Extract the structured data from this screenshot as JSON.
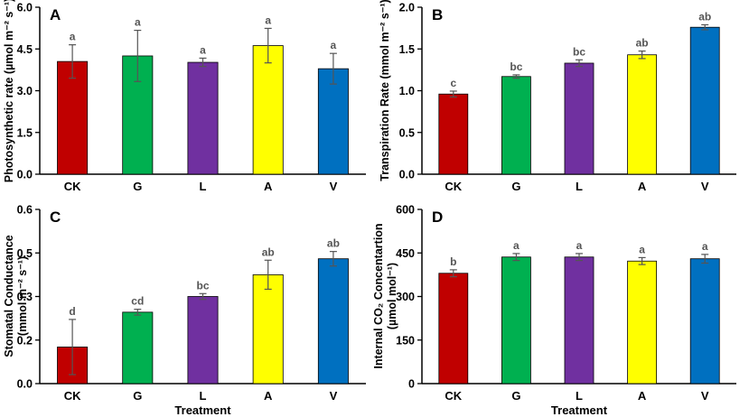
{
  "figure": {
    "colors": {
      "CK": "#c00000",
      "G": "#00b050",
      "L": "#7030a0",
      "A": "#ffff00",
      "V": "#0070c0",
      "axis": "#000000",
      "errorbar": "#555555"
    }
  },
  "chart_data": [
    {
      "panel": "A",
      "type": "bar",
      "categories": [
        "CK",
        "G",
        "L",
        "A",
        "V"
      ],
      "values": [
        4.05,
        4.25,
        4.02,
        4.62,
        3.79
      ],
      "errors": [
        0.6,
        0.92,
        0.15,
        0.62,
        0.55
      ],
      "significance": [
        "a",
        "a",
        "a",
        "a",
        "a"
      ],
      "ylabel": "Photosynthetic  rate (µmol m⁻² s⁻¹)",
      "xlabel": "",
      "ylim": [
        0,
        6.0
      ],
      "yticks": [
        "0.0",
        "1.5",
        "3.0",
        "4.5",
        "6.0"
      ]
    },
    {
      "panel": "B",
      "type": "bar",
      "categories": [
        "CK",
        "G",
        "L",
        "A",
        "V"
      ],
      "values": [
        0.96,
        1.17,
        1.33,
        1.43,
        1.76
      ],
      "errors": [
        0.035,
        0.02,
        0.04,
        0.045,
        0.03
      ],
      "significance": [
        "c",
        "bc",
        "bc",
        "ab",
        "ab"
      ],
      "ylabel": "Transpiration Rate (mmol m⁻² s⁻¹)",
      "xlabel": "",
      "ylim": [
        0,
        2.0
      ],
      "yticks": [
        "0.0",
        "0.5",
        "1.0",
        "1.5",
        "2.0"
      ]
    },
    {
      "panel": "C",
      "type": "bar",
      "categories": [
        "CK",
        "G",
        "L",
        "A",
        "V"
      ],
      "values": [
        0.126,
        0.246,
        0.3,
        0.375,
        0.43
      ],
      "errors": [
        0.095,
        0.01,
        0.01,
        0.05,
        0.025
      ],
      "significance": [
        "d",
        "cd",
        "bc",
        "ab",
        "ab"
      ],
      "ylabel_line1": "Stomatal Conductance",
      "ylabel_line2": "(mmol m⁻² s⁻¹)",
      "xlabel": "Treatment",
      "ylim": [
        0,
        0.6
      ],
      "yticks": [
        "0.0",
        "0.2",
        "0.3",
        "0.5",
        "0.6"
      ]
    },
    {
      "panel": "D",
      "type": "bar",
      "categories": [
        "CK",
        "G",
        "L",
        "A",
        "V"
      ],
      "values": [
        380,
        436,
        436,
        422,
        430
      ],
      "errors": [
        12,
        12,
        12,
        12,
        15
      ],
      "significance": [
        "b",
        "a",
        "a",
        "a",
        "a"
      ],
      "ylabel_line1": "Internal CO₂ Concentartion",
      "ylabel_line2": "(µmol mol⁻¹)",
      "xlabel": "Treatment",
      "ylim": [
        0,
        600
      ],
      "yticks": [
        "0",
        "150",
        "300",
        "450",
        "600"
      ]
    }
  ]
}
